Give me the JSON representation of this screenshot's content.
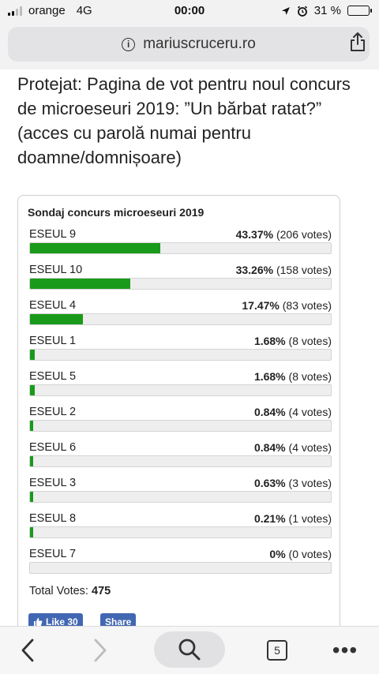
{
  "status_bar": {
    "carrier": "orange",
    "network": "4G",
    "time": "00:00",
    "battery": "31 %",
    "battery_level": 0.31
  },
  "browser": {
    "url": "mariuscruceru.ro"
  },
  "article": {
    "title": "Protejat: Pagina de vot pentru noul concurs de microeseuri 2019: ”Un bărbat ratat?” (acces cu parolă numai pentru doamne/domnișoare)"
  },
  "poll": {
    "title": "Sondaj concurs microeseuri 2019",
    "answers": [
      {
        "name": "ESEUL 9",
        "percent": "43.37%",
        "votes": "(206 votes)",
        "share": 0.4337
      },
      {
        "name": "ESEUL 10",
        "percent": "33.26%",
        "votes": "(158 votes)",
        "share": 0.3326
      },
      {
        "name": "ESEUL 4",
        "percent": "17.47%",
        "votes": "(83 votes)",
        "share": 0.1747
      },
      {
        "name": "ESEUL 1",
        "percent": "1.68%",
        "votes": "(8 votes)",
        "share": 0.0168
      },
      {
        "name": "ESEUL 5",
        "percent": "1.68%",
        "votes": "(8 votes)",
        "share": 0.0168
      },
      {
        "name": "ESEUL 2",
        "percent": "0.84%",
        "votes": "(4 votes)",
        "share": 0.0084
      },
      {
        "name": "ESEUL 6",
        "percent": "0.84%",
        "votes": "(4 votes)",
        "share": 0.0084
      },
      {
        "name": "ESEUL 3",
        "percent": "0.63%",
        "votes": "(3 votes)",
        "share": 0.0063
      },
      {
        "name": "ESEUL 8",
        "percent": "0.21%",
        "votes": "(1 votes)",
        "share": 0.0021
      },
      {
        "name": "ESEUL 7",
        "percent": "0%",
        "votes": "(0 votes)",
        "share": 0
      }
    ],
    "total_label": "Total Votes:",
    "total_value": "475",
    "bar_color": "#1a9a1a"
  },
  "social": {
    "like_label": "Like 30",
    "share_label": "Share"
  },
  "toolbar": {
    "tab_count": "5",
    "more_label": "•••"
  }
}
